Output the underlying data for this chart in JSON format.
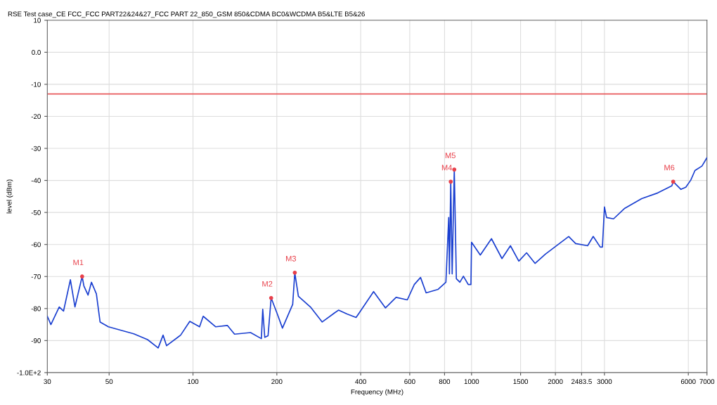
{
  "chart_data": {
    "type": "line",
    "title": "RSE Test case_CE FCC_FCC PART22&24&27_FCC PART 22_850_GSM 850&CDMA BC0&WCDMA B5&LTE B5&26",
    "xlabel": "Frequency (MHz)",
    "ylabel": "level (dBm)",
    "log": "x",
    "grid": true,
    "xlim": [
      30,
      7000
    ],
    "xticks": [
      30,
      50,
      100,
      200,
      400,
      600,
      800,
      1000,
      1500,
      2000,
      2483.5,
      3000,
      6000,
      7000
    ],
    "ylim": [
      -100,
      10
    ],
    "yticks": [
      10,
      {
        "value": 0,
        "label": "0.0"
      },
      -10,
      -20,
      -30,
      -40,
      -50,
      -60,
      -70,
      -80,
      -90,
      {
        "value": -100,
        "label": "-1.0E+2"
      }
    ],
    "ref_lines": [
      {
        "axis": "y",
        "value": -13,
        "color": "#e8585a"
      }
    ],
    "series": [
      {
        "color": "#1a3fd0",
        "marker": "none",
        "x": [
          30,
          30.9,
          33.1,
          34.3,
          36.3,
          37.7,
          40,
          40.6,
          42.0,
          43.2,
          45.0,
          46.4,
          49.7,
          61.3,
          68.7,
          75.0,
          78.1,
          80.4,
          90.3,
          97.4,
          105.6,
          108.8,
          120.7,
          133,
          141,
          161,
          176,
          178,
          181,
          186,
          190.8,
          200,
          209.5,
          228,
          232,
          239,
          264,
          291,
          323,
          333,
          357,
          385,
          445,
          491,
          536,
          588,
          623,
          656,
          687,
          759,
          809,
          828,
          833,
          842,
          852,
          867,
          882,
          908,
          935,
          973,
          995,
          1000,
          1075,
          1179,
          1286,
          1379,
          1478,
          1576,
          1690,
          1842,
          2232,
          2364,
          2610,
          2734,
          2897,
          2950,
          3000,
          3053,
          3234,
          3549,
          4080,
          4662,
          5236,
          5296,
          5646,
          5878,
          6124,
          6339,
          6718,
          7000
        ],
        "values": [
          -82.4,
          -85,
          -79.5,
          -80.8,
          -71,
          -79.5,
          -70,
          -73,
          -75.8,
          -71.8,
          -75.4,
          -84.2,
          -85.7,
          -87.9,
          -89.7,
          -92.3,
          -88.3,
          -91.6,
          -88.3,
          -84,
          -85.7,
          -82.4,
          -85.7,
          -85.3,
          -88,
          -87.5,
          -89.4,
          -80.2,
          -89,
          -88.5,
          -76.7,
          -81.3,
          -86.1,
          -78.7,
          -68.8,
          -76.2,
          -79.5,
          -84.2,
          -81.3,
          -80.5,
          -81.7,
          -82.8,
          -74.7,
          -79.8,
          -76.5,
          -77.3,
          -72.5,
          -70.3,
          -75.1,
          -74,
          -71.8,
          -51.6,
          -69.2,
          -40.4,
          -69.2,
          -36.6,
          -70.7,
          -71.8,
          -69.9,
          -72.5,
          -72.5,
          -59.3,
          -63.3,
          -58.2,
          -64.4,
          -60.4,
          -65.2,
          -62.6,
          -65.9,
          -63,
          -57.5,
          -59.7,
          -60.4,
          -57.5,
          -60.8,
          -60.8,
          -48.3,
          -51.6,
          -52,
          -48.7,
          -45.7,
          -43.9,
          -41.7,
          -40.4,
          -42.8,
          -42.1,
          -39.9,
          -36.9,
          -35.5,
          -32.9
        ]
      },
      {
        "type": "scatter",
        "color": "#e8404a",
        "marker": "circle",
        "x": [
          40,
          190.8,
          232,
          842,
          867,
          5296
        ],
        "values": [
          -70,
          -76.7,
          -68.8,
          -40.4,
          -36.6,
          -40.4
        ]
      }
    ],
    "annotations": [
      {
        "text": "M1",
        "x": 40,
        "y": -70
      },
      {
        "text": "M2",
        "x": 190.8,
        "y": -76.7
      },
      {
        "text": "M3",
        "x": 232,
        "y": -68.8
      },
      {
        "text": "M4",
        "x": 842,
        "y": -40.4
      },
      {
        "text": "M5",
        "x": 867,
        "y": -36.6
      },
      {
        "text": "M6",
        "x": 5296,
        "y": -40.4
      }
    ]
  }
}
